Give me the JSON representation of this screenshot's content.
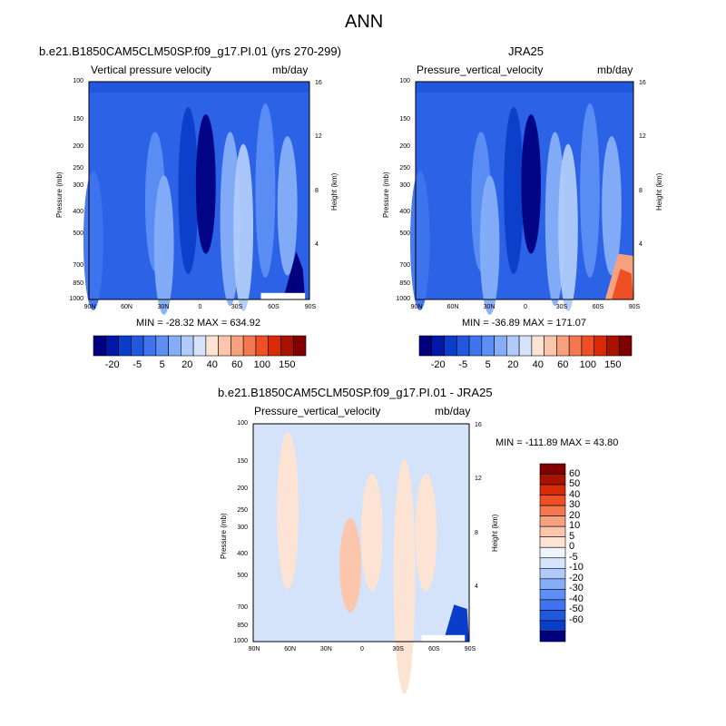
{
  "chart_data": [
    {
      "type": "heatmap",
      "id": "model",
      "title": "b.e21.B1850CAM5CLM50SP.f09_g17.PI.01 (yrs 270-299)",
      "left_label": "Vertical pressure velocity",
      "right_label": "mb/day",
      "ylabel": "Pressure (mb)",
      "ylabel_right": "Height (km)",
      "xticks": [
        "90N",
        "60N",
        "30N",
        "0",
        "30S",
        "60S",
        "90S"
      ],
      "yticks": [
        "100",
        "150",
        "200",
        "250",
        "300",
        "400",
        "500",
        "700",
        "850",
        "1000"
      ],
      "height_ticks": [
        "16",
        "12",
        "8",
        "4"
      ],
      "stats": "MIN = -28.32  MAX = 634.92",
      "colorbar_labels": [
        "-20",
        "-5",
        "5",
        "20",
        "40",
        "60",
        "100",
        "150"
      ]
    },
    {
      "type": "heatmap",
      "id": "obs",
      "title": "JRA25",
      "left_label": "Pressure_vertical_velocity",
      "right_label": "mb/day",
      "ylabel": "Pressure (mb)",
      "ylabel_right": "Height (km)",
      "xticks": [
        "90N",
        "60N",
        "30N",
        "0",
        "30S",
        "60S",
        "90S"
      ],
      "yticks": [
        "100",
        "150",
        "200",
        "250",
        "300",
        "400",
        "500",
        "700",
        "850",
        "1000"
      ],
      "height_ticks": [
        "16",
        "12",
        "8",
        "4"
      ],
      "stats": "MIN = -36.89  MAX = 171.07",
      "colorbar_labels": [
        "-20",
        "-5",
        "5",
        "20",
        "40",
        "60",
        "100",
        "150"
      ]
    },
    {
      "type": "heatmap",
      "id": "diff",
      "title": "b.e21.B1850CAM5CLM50SP.f09_g17.PI.01 - JRA25",
      "left_label": "Pressure_vertical_velocity",
      "right_label": "mb/day",
      "ylabel": "Pressure (mb)",
      "ylabel_right": "Height (km)",
      "xticks": [
        "90N",
        "60N",
        "30N",
        "0",
        "30S",
        "60S",
        "90S"
      ],
      "yticks": [
        "100",
        "150",
        "200",
        "250",
        "300",
        "400",
        "500",
        "700",
        "850",
        "1000"
      ],
      "height_ticks": [
        "16",
        "12",
        "8",
        "4"
      ],
      "stats": "MIN = -111.89  MAX =  43.80",
      "colorbar_labels": [
        "60",
        "50",
        "40",
        "30",
        "20",
        "10",
        "5",
        "0",
        "-5",
        "-10",
        "-20",
        "-30",
        "-40",
        "-50",
        "-60"
      ]
    }
  ],
  "figure_title": "ANN",
  "colors": {
    "cb_main": [
      "#00007f",
      "#0018a8",
      "#0b3ec8",
      "#2258e0",
      "#3f74ee",
      "#5d8ff4",
      "#86aef8",
      "#b0cbfa",
      "#d6e4fb",
      "#fde3d4",
      "#fbc6ab",
      "#f8a17f",
      "#f4784f",
      "#ee4f24",
      "#d92a08",
      "#aa1200",
      "#800000"
    ],
    "cb_diff": [
      "#800000",
      "#aa1200",
      "#d92a08",
      "#ee4f24",
      "#f4784f",
      "#f8a17f",
      "#fbc6ab",
      "#fde3d4",
      "#eef4fb",
      "#d6e4fb",
      "#b0cbfa",
      "#86aef8",
      "#5d8ff4",
      "#3f74ee",
      "#2258e0",
      "#0b3ec8",
      "#00007f"
    ],
    "field_base": "#2b62e6",
    "diff_base": "#d4e3fa"
  }
}
